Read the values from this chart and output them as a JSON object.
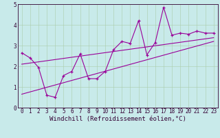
{
  "title": "",
  "xlabel": "Windchill (Refroidissement éolien,°C)",
  "bg_color": "#c8eaea",
  "line_color": "#990099",
  "grid_color": "#aaccaa",
  "xlim": [
    -0.5,
    23.5
  ],
  "ylim": [
    0,
    5
  ],
  "xticks": [
    0,
    1,
    2,
    3,
    4,
    5,
    6,
    7,
    8,
    9,
    10,
    11,
    12,
    13,
    14,
    15,
    16,
    17,
    18,
    19,
    20,
    21,
    22,
    23
  ],
  "yticks": [
    0,
    1,
    2,
    3,
    4,
    5
  ],
  "hours": [
    0,
    1,
    2,
    3,
    4,
    5,
    6,
    7,
    8,
    9,
    10,
    11,
    12,
    13,
    14,
    15,
    16,
    17,
    18,
    19,
    20,
    21,
    22,
    23
  ],
  "windchill": [
    2.65,
    2.4,
    1.95,
    0.6,
    0.5,
    1.55,
    1.75,
    2.6,
    1.4,
    1.4,
    1.75,
    2.8,
    3.2,
    3.1,
    4.2,
    2.55,
    3.15,
    4.85,
    3.5,
    3.6,
    3.55,
    3.7,
    3.6,
    3.6
  ],
  "reg1_start_x": 0,
  "reg1_start_y": 2.1,
  "reg1_end_x": 23,
  "reg1_end_y": 3.38,
  "reg2_start_x": 0,
  "reg2_start_y": 0.65,
  "reg2_end_x": 23,
  "reg2_end_y": 3.2,
  "font_family": "monospace",
  "label_fontsize": 6.5,
  "tick_fontsize": 5.5
}
